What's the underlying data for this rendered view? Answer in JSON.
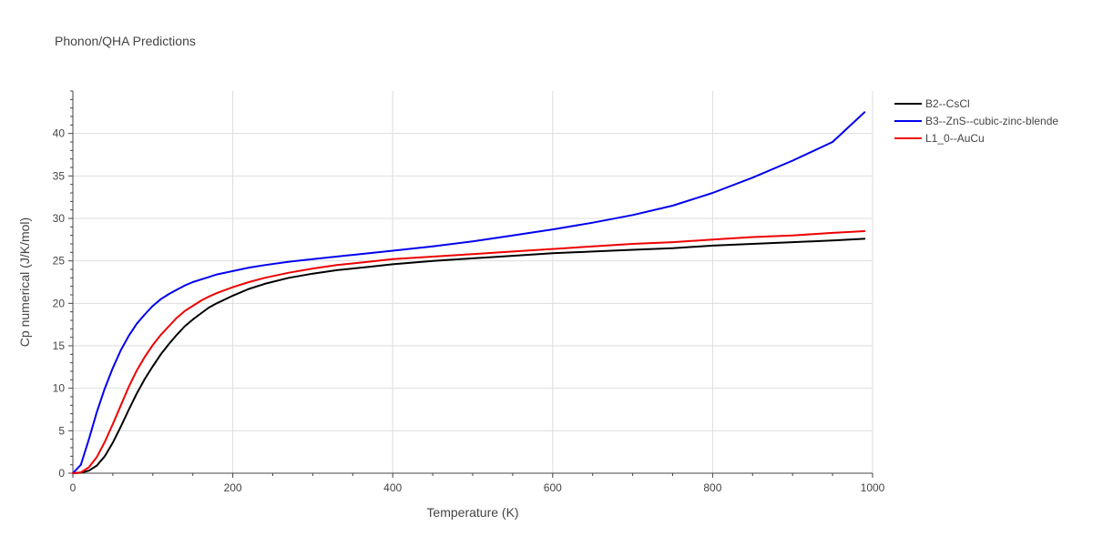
{
  "chart_data": {
    "type": "line",
    "title": "Phonon/QHA Predictions",
    "xlabel": "Temperature (K)",
    "ylabel": "Cp numerical (J/K/mol)",
    "xlim": [
      0,
      1000
    ],
    "ylim": [
      0,
      45
    ],
    "xticks": [
      0,
      200,
      400,
      600,
      800,
      1000
    ],
    "yticks": [
      0,
      5,
      10,
      15,
      20,
      25,
      30,
      35,
      40
    ],
    "grid": true,
    "legend_position": "top-right",
    "series": [
      {
        "name": "B2--CsCl",
        "color": "#000000",
        "x": [
          0,
          10,
          20,
          30,
          40,
          50,
          60,
          70,
          80,
          90,
          100,
          110,
          120,
          130,
          140,
          150,
          160,
          170,
          180,
          200,
          220,
          240,
          270,
          300,
          330,
          370,
          400,
          450,
          500,
          550,
          600,
          650,
          700,
          750,
          800,
          850,
          900,
          950,
          990
        ],
        "values": [
          0,
          0.05,
          0.3,
          0.9,
          2.0,
          3.6,
          5.5,
          7.5,
          9.4,
          11.1,
          12.6,
          14.0,
          15.2,
          16.3,
          17.3,
          18.1,
          18.8,
          19.5,
          20.0,
          20.9,
          21.7,
          22.3,
          23.0,
          23.5,
          23.9,
          24.3,
          24.6,
          25.0,
          25.3,
          25.6,
          25.9,
          26.1,
          26.3,
          26.5,
          26.8,
          27.0,
          27.2,
          27.4,
          27.6
        ]
      },
      {
        "name": "B3--ZnS--cubic-zinc-blende",
        "color": "#0000ee",
        "x": [
          0,
          10,
          20,
          30,
          40,
          50,
          60,
          70,
          80,
          90,
          100,
          110,
          120,
          130,
          140,
          150,
          160,
          170,
          180,
          200,
          220,
          240,
          270,
          300,
          350,
          400,
          450,
          500,
          550,
          600,
          650,
          700,
          750,
          800,
          850,
          900,
          950,
          990
        ],
        "values": [
          0,
          1.0,
          4.0,
          7.2,
          10.0,
          12.4,
          14.5,
          16.2,
          17.6,
          18.7,
          19.7,
          20.5,
          21.1,
          21.6,
          22.1,
          22.5,
          22.8,
          23.1,
          23.4,
          23.8,
          24.2,
          24.5,
          24.9,
          25.2,
          25.7,
          26.2,
          26.7,
          27.3,
          28.0,
          28.7,
          29.5,
          30.4,
          31.5,
          33.0,
          34.8,
          36.8,
          39.0,
          42.5
        ]
      },
      {
        "name": "L1_0--AuCu",
        "color": "#ee0000",
        "x": [
          0,
          10,
          20,
          30,
          40,
          50,
          60,
          70,
          80,
          90,
          100,
          110,
          120,
          130,
          140,
          150,
          160,
          170,
          180,
          200,
          220,
          240,
          270,
          300,
          330,
          370,
          400,
          450,
          500,
          550,
          600,
          650,
          700,
          750,
          800,
          850,
          900,
          950,
          990
        ],
        "values": [
          0,
          0.1,
          0.7,
          1.9,
          3.7,
          5.8,
          8.0,
          10.2,
          12.1,
          13.7,
          15.1,
          16.3,
          17.3,
          18.3,
          19.1,
          19.7,
          20.3,
          20.8,
          21.2,
          21.9,
          22.5,
          23.0,
          23.6,
          24.1,
          24.5,
          24.9,
          25.2,
          25.5,
          25.8,
          26.1,
          26.4,
          26.7,
          27.0,
          27.2,
          27.5,
          27.8,
          28.0,
          28.3,
          28.5
        ]
      }
    ]
  }
}
